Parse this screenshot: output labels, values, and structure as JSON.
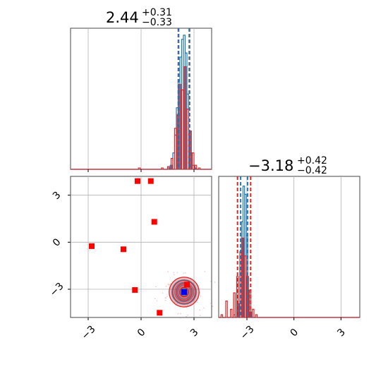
{
  "colors": {
    "blue": "#1f77b4",
    "red": "#d62728",
    "marker_red": "#ff0000",
    "marker_blue": "#0000ff",
    "grid": "#b0b0b0"
  },
  "chart_data": [
    {
      "type": "histogram",
      "panel": "top-left",
      "title": {
        "median": "2.44",
        "plus": "+0.31",
        "minus": "−0.33"
      },
      "xlim": [
        -4.0,
        4.0
      ],
      "grid": true,
      "xticks": [
        -3,
        0,
        3
      ],
      "quantile_lines": {
        "red": [
          2.11,
          2.75
        ],
        "blue": [
          2.13,
          2.73
        ]
      },
      "series": [
        {
          "name": "",
          "color": "blue",
          "bins": [
            [
              1.55,
              0.01
            ],
            [
              1.7,
              0.03
            ],
            [
              1.85,
              0.12
            ],
            [
              1.95,
              0.25
            ],
            [
              2.05,
              0.45
            ],
            [
              2.15,
              0.65
            ],
            [
              2.25,
              0.82
            ],
            [
              2.35,
              0.95
            ],
            [
              2.45,
              0.98
            ],
            [
              2.55,
              0.85
            ],
            [
              2.65,
              0.55
            ],
            [
              2.75,
              0.28
            ],
            [
              2.85,
              0.12
            ],
            [
              2.95,
              0.03
            ],
            [
              3.05,
              0.01
            ]
          ]
        },
        {
          "name": "",
          "color": "red",
          "bins": [
            [
              -0.1,
              0.01
            ],
            [
              1.2,
              0.01
            ],
            [
              1.55,
              0.02
            ],
            [
              1.75,
              0.08
            ],
            [
              1.95,
              0.3
            ],
            [
              2.1,
              0.4
            ],
            [
              2.2,
              0.62
            ],
            [
              2.35,
              0.58
            ],
            [
              2.5,
              0.75
            ],
            [
              2.65,
              0.44
            ],
            [
              2.8,
              0.28
            ],
            [
              2.95,
              0.12
            ],
            [
              3.1,
              0.03
            ],
            [
              3.3,
              0.01
            ]
          ]
        }
      ]
    },
    {
      "type": "scatter",
      "panel": "bottom-left",
      "xlim": [
        -4.0,
        4.0
      ],
      "ylim": [
        -4.8,
        4.2
      ],
      "grid": true,
      "xticks": [
        -3,
        0,
        3
      ],
      "yticks": [
        -3,
        0,
        3
      ],
      "red_markers": [
        [
          -0.2,
          3.9
        ],
        [
          0.55,
          3.9
        ],
        [
          0.75,
          1.3
        ],
        [
          -2.8,
          -0.25
        ],
        [
          -1.0,
          -0.45
        ],
        [
          -0.35,
          -3.05
        ],
        [
          1.05,
          -4.5
        ],
        [
          2.6,
          -2.7
        ]
      ],
      "blue_markers": [
        [
          2.44,
          -3.18
        ]
      ],
      "contour_center": [
        2.44,
        -3.18
      ],
      "contour_levels": [
        [
          0.85,
          0.95
        ],
        [
          0.65,
          0.75
        ],
        [
          0.45,
          0.55
        ],
        [
          0.25,
          0.3
        ]
      ]
    },
    {
      "type": "histogram",
      "panel": "bottom-right",
      "title": {
        "median": "−3.18",
        "plus": "+0.42",
        "minus": "−0.42"
      },
      "xlim": [
        -4.8,
        4.2
      ],
      "grid": true,
      "xticks": [
        -3,
        0,
        3
      ],
      "quantile_lines": {
        "red": [
          -3.6,
          -2.76
        ],
        "blue": [
          -3.4,
          -2.96
        ]
      },
      "series": [
        {
          "name": "",
          "color": "blue",
          "bins": [
            [
              -3.8,
              0.02
            ],
            [
              -3.55,
              0.1
            ],
            [
              -3.4,
              0.35
            ],
            [
              -3.3,
              0.7
            ],
            [
              -3.2,
              0.96
            ],
            [
              -3.1,
              0.9
            ],
            [
              -3.0,
              0.6
            ],
            [
              -2.9,
              0.2
            ],
            [
              -2.75,
              0.04
            ]
          ]
        },
        {
          "name": "",
          "color": "red",
          "bins": [
            [
              -4.6,
              0.02
            ],
            [
              -4.3,
              0.12
            ],
            [
              -4.0,
              0.06
            ],
            [
              -3.8,
              0.18
            ],
            [
              -3.6,
              0.3
            ],
            [
              -3.4,
              0.48
            ],
            [
              -3.25,
              0.58
            ],
            [
              -3.1,
              0.45
            ],
            [
              -2.95,
              0.3
            ],
            [
              -2.8,
              0.2
            ],
            [
              -2.6,
              0.06
            ],
            [
              -2.4,
              0.02
            ]
          ]
        }
      ]
    }
  ]
}
